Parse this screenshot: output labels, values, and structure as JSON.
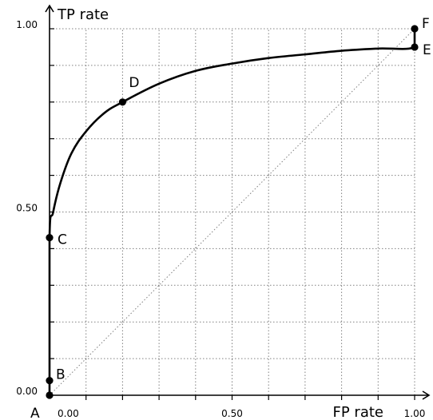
{
  "chart_data": {
    "type": "line",
    "xlabel": "FP rate",
    "ylabel": "TP rate",
    "xlim": [
      0,
      1
    ],
    "ylim": [
      0,
      1
    ],
    "grid": true,
    "diagonal": true,
    "x_tick_labels": [
      {
        "value": 0.0,
        "label": "0.00"
      },
      {
        "value": 0.5,
        "label": "0.50"
      },
      {
        "value": 1.0,
        "label": "1.00"
      }
    ],
    "y_tick_labels": [
      {
        "value": 0.0,
        "label": "0.00"
      },
      {
        "value": 0.5,
        "label": "0.50"
      },
      {
        "value": 1.0,
        "label": "1.00"
      }
    ],
    "minor_ticks": [
      0.1,
      0.2,
      0.3,
      0.4,
      0.6,
      0.7,
      0.8,
      0.9
    ],
    "points": [
      {
        "label": "A",
        "x": 0.0,
        "y": 0.0
      },
      {
        "label": "B",
        "x": 0.0,
        "y": 0.04
      },
      {
        "label": "C",
        "x": 0.0,
        "y": 0.43
      },
      {
        "label": "D",
        "x": 0.2,
        "y": 0.8
      },
      {
        "label": "E",
        "x": 1.0,
        "y": 0.95
      },
      {
        "label": "F",
        "x": 1.0,
        "y": 1.0
      }
    ],
    "curve": [
      [
        0.0,
        0.0
      ],
      [
        0.0,
        0.43
      ],
      [
        0.01,
        0.5
      ],
      [
        0.03,
        0.58
      ],
      [
        0.06,
        0.66
      ],
      [
        0.1,
        0.72
      ],
      [
        0.15,
        0.77
      ],
      [
        0.2,
        0.8
      ],
      [
        0.3,
        0.85
      ],
      [
        0.4,
        0.885
      ],
      [
        0.5,
        0.905
      ],
      [
        0.6,
        0.92
      ],
      [
        0.7,
        0.93
      ],
      [
        0.8,
        0.94
      ],
      [
        0.9,
        0.946
      ],
      [
        1.0,
        0.95
      ],
      [
        1.0,
        1.0
      ]
    ]
  }
}
